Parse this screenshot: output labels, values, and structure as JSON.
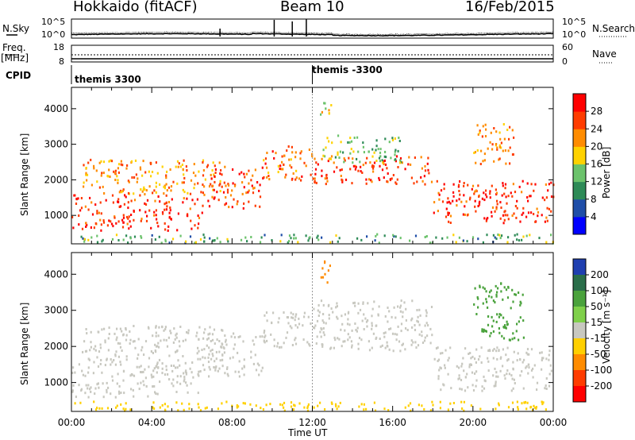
{
  "header": {
    "station": "Hokkaido (fitACF)",
    "beam": "Beam 10",
    "date": "16/Feb/2015"
  },
  "strip_labels": {
    "nsky": "N.Sky",
    "freq_top": "Freq.",
    "freq_unit": "[MHz]",
    "cpid": "CPID",
    "nsearch": "N.Search",
    "nave": "Nave"
  },
  "strip_ticks": {
    "nsky_top": "10^5",
    "nsky_bottom": "10^0",
    "freq_top": "18",
    "freq_bottom": "8",
    "nave_top": "60",
    "nave_bottom": "0"
  },
  "cpid_labels": [
    "themis 3300",
    "themis -3300"
  ],
  "x_ticks": [
    "00:00",
    "04:00",
    "08:00",
    "12:00",
    "16:00",
    "20:00",
    "00:00"
  ],
  "x_label": "Time UT",
  "chart_data": [
    {
      "type": "heatmap",
      "panel": "power",
      "ylabel": "Slant Range [km]",
      "x_range_hours": [
        0,
        24
      ],
      "ylim": [
        200,
        4600
      ],
      "y_ticks": [
        "1000",
        "2000",
        "3000",
        "4000"
      ],
      "colorbar": {
        "label": "Power [dB]",
        "ticks": [
          "4",
          "8",
          "12",
          "16",
          "20",
          "24",
          "28"
        ],
        "colors": [
          "#0000ff",
          "#1f4ea8",
          "#2e8b57",
          "#6cc36c",
          "#ffd200",
          "#ff8c00",
          "#ff3c00",
          "#ff0000"
        ]
      },
      "scatter_bands": [
        {
          "t0": 0.0,
          "t1": 6.5,
          "r0": 600,
          "r1": 1600,
          "level": 28
        },
        {
          "t0": 0.5,
          "t1": 7.5,
          "r0": 1600,
          "r1": 2600,
          "level": 22
        },
        {
          "t0": 6.5,
          "t1": 9.5,
          "r0": 1200,
          "r1": 2400,
          "level": 26
        },
        {
          "t0": 9.5,
          "t1": 12.0,
          "r0": 2000,
          "r1": 3000,
          "level": 24
        },
        {
          "t0": 12.0,
          "t1": 18.0,
          "r0": 1900,
          "r1": 2700,
          "level": 27
        },
        {
          "t0": 12.5,
          "t1": 16.5,
          "r0": 2500,
          "r1": 3300,
          "level": 14
        },
        {
          "t0": 18.0,
          "t1": 24.0,
          "r0": 800,
          "r1": 2000,
          "level": 27
        },
        {
          "t0": 20.0,
          "t1": 22.0,
          "r0": 2400,
          "r1": 3600,
          "level": 22
        },
        {
          "t0": 12.3,
          "t1": 12.9,
          "r0": 3700,
          "r1": 4400,
          "level": 18
        },
        {
          "t0": 0.0,
          "t1": 24.0,
          "r0": 250,
          "r1": 500,
          "level": 12
        }
      ]
    },
    {
      "type": "heatmap",
      "panel": "velocity",
      "ylabel": "Slant Range [km]",
      "x_range_hours": [
        0,
        24
      ],
      "ylim": [
        200,
        4600
      ],
      "y_ticks": [
        "1000",
        "2000",
        "3000",
        "4000"
      ],
      "colorbar": {
        "label": "Velocity [m s⁻¹]",
        "ticks": [
          "200",
          "100",
          "50",
          "15",
          "-15",
          "-50",
          "-100",
          "-200"
        ],
        "colors": [
          "#1f3fb0",
          "#2a6e4a",
          "#4aa23c",
          "#7fd04a",
          "#c8c8c0",
          "#ffd000",
          "#ff8c00",
          "#ff3c00",
          "#ff0000"
        ]
      },
      "scatter_bands": [
        {
          "t0": 0.0,
          "t1": 6.5,
          "r0": 600,
          "r1": 1600,
          "level": 0
        },
        {
          "t0": 0.5,
          "t1": 7.5,
          "r0": 1600,
          "r1": 2600,
          "level": 0
        },
        {
          "t0": 6.5,
          "t1": 9.5,
          "r0": 1200,
          "r1": 2400,
          "level": 0
        },
        {
          "t0": 9.5,
          "t1": 12.0,
          "r0": 2000,
          "r1": 3000,
          "level": 0
        },
        {
          "t0": 12.0,
          "t1": 18.0,
          "r0": 1900,
          "r1": 3300,
          "level": 0
        },
        {
          "t0": 18.0,
          "t1": 24.0,
          "r0": 800,
          "r1": 2000,
          "level": 0
        },
        {
          "t0": 20.0,
          "t1": 22.5,
          "r0": 2200,
          "r1": 3800,
          "level": 60
        },
        {
          "t0": 12.3,
          "t1": 12.9,
          "r0": 3700,
          "r1": 4400,
          "level": -80
        },
        {
          "t0": 0.0,
          "t1": 24.0,
          "r0": 250,
          "r1": 500,
          "level": -30
        }
      ]
    }
  ]
}
